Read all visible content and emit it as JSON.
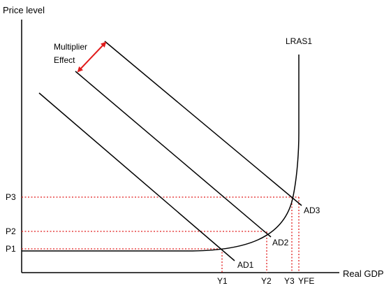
{
  "colors": {
    "axis": "#000000",
    "curve": "#000000",
    "guide": "#e11b1b",
    "arrow": "#e11b1b"
  },
  "axes": {
    "y_label": "Price level",
    "x_label": "Real GDP"
  },
  "curves": {
    "lras": {
      "label": "LRAS1"
    },
    "ad": [
      {
        "label": "AD1"
      },
      {
        "label": "AD2"
      },
      {
        "label": "AD3"
      }
    ]
  },
  "price_levels": [
    "P1",
    "P2",
    "P3"
  ],
  "output_levels": [
    "Y1",
    "Y2",
    "Y3",
    "YFE"
  ],
  "annotation": {
    "line1": "Multiplier",
    "line2": "Effect"
  }
}
